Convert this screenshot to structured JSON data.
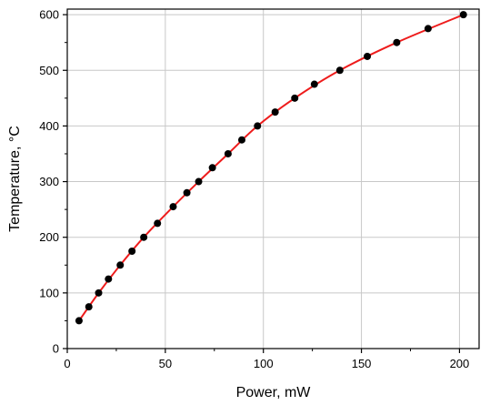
{
  "chart_data": {
    "type": "scatter",
    "title": "",
    "xlabel": "Power, mW",
    "ylabel": "Temperature, °C",
    "xlim": [
      0,
      210
    ],
    "ylim": [
      0,
      610
    ],
    "x_ticks": [
      0,
      50,
      100,
      150,
      200
    ],
    "y_ticks": [
      0,
      100,
      200,
      300,
      400,
      500,
      600
    ],
    "x_tick_labels": [
      "0",
      "50",
      "100",
      "150",
      "200"
    ],
    "y_tick_labels": [
      "0",
      "100",
      "200",
      "300",
      "400",
      "500",
      "600"
    ],
    "grid": true,
    "legend": "none",
    "series": [
      {
        "kind": "points",
        "color": "#000000",
        "x": [
          6,
          11,
          16,
          21,
          27,
          33,
          39,
          46,
          54,
          61,
          67,
          74,
          82,
          89,
          97,
          106,
          116,
          126,
          139,
          153,
          168,
          184,
          202
        ],
        "y": [
          50,
          75,
          100,
          125,
          150,
          175,
          200,
          225,
          255,
          280,
          300,
          325,
          350,
          375,
          400,
          425,
          450,
          475,
          500,
          525,
          550,
          575,
          600
        ]
      },
      {
        "kind": "fit-line",
        "color": "#ee1c1c",
        "x": [
          6,
          16,
          27,
          39,
          54,
          67,
          82,
          97,
          116,
          139,
          168,
          202
        ],
        "y": [
          50,
          100,
          150,
          200,
          255,
          300,
          350,
          400,
          450,
          500,
          550,
          600
        ]
      }
    ]
  }
}
